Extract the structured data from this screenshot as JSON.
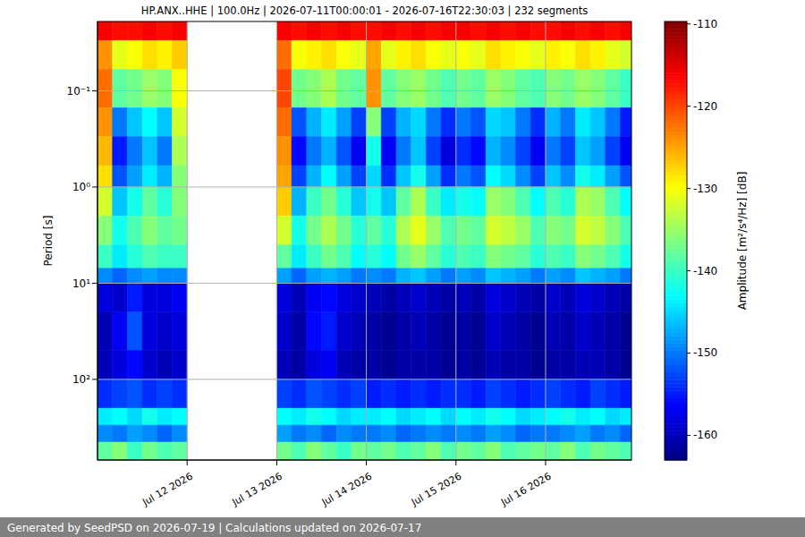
{
  "chart_data": {
    "type": "heatmap",
    "title": "HP.ANX..HHE | 100.0Hz | 2026-07-11T00:00:01 - 2026-07-16T22:30:03 | 232 segments",
    "ylabel": "Period [s]",
    "colorbar_label": "Amplitude [m²/s⁴/Hz] [dB]",
    "footer": "Generated by SeedPSD on 2026-07-19 | Calculations updated on 2026-07-17",
    "log": "y",
    "grid": true,
    "xlim": [
      "2026-07-11T00:00",
      "2026-07-16T23:00"
    ],
    "xticks": [
      {
        "value": "2026-07-12T00:00",
        "label": "Jul 12 2026"
      },
      {
        "value": "2026-07-13T00:00",
        "label": "Jul 13 2026"
      },
      {
        "value": "2026-07-14T00:00",
        "label": "Jul 14 2026"
      },
      {
        "value": "2026-07-15T00:00",
        "label": "Jul 15 2026"
      },
      {
        "value": "2026-07-16T00:00",
        "label": "Jul 16 2026"
      }
    ],
    "ylim": [
      0.019,
      690
    ],
    "yticks": [
      {
        "value": 0.1,
        "label": "10⁻¹"
      },
      {
        "value": 1,
        "label": "10⁰"
      },
      {
        "value": 10,
        "label": "10¹"
      },
      {
        "value": 100,
        "label": "10²"
      }
    ],
    "colorbar_range": [
      -163,
      -109.7
    ],
    "colorbar_ticks": [
      -160,
      -150,
      -140,
      -130,
      -120,
      -110
    ],
    "x_bins": [
      "2026-07-11T00:00",
      "2026-07-11T04:00",
      "2026-07-11T08:00",
      "2026-07-11T12:00",
      "2026-07-11T16:00",
      "2026-07-11T20:00",
      "2026-07-12T00:00",
      "2026-07-12T04:00",
      "2026-07-12T08:00",
      "2026-07-12T12:00",
      "2026-07-12T16:00",
      "2026-07-12T20:00",
      "2026-07-13T00:00",
      "2026-07-13T04:00",
      "2026-07-13T08:00",
      "2026-07-13T12:00",
      "2026-07-13T16:00",
      "2026-07-13T20:00",
      "2026-07-14T00:00",
      "2026-07-14T04:00",
      "2026-07-14T08:00",
      "2026-07-14T12:00",
      "2026-07-14T16:00",
      "2026-07-14T20:00",
      "2026-07-15T00:00",
      "2026-07-15T04:00",
      "2026-07-15T08:00",
      "2026-07-15T12:00",
      "2026-07-15T16:00",
      "2026-07-15T20:00",
      "2026-07-16T00:00",
      "2026-07-16T04:00",
      "2026-07-16T08:00",
      "2026-07-16T12:00",
      "2026-07-16T16:00",
      "2026-07-16T20:00",
      "2026-07-17T00:00"
    ],
    "y_bins": [
      0.019,
      0.03,
      0.06,
      0.15,
      0.3,
      0.6,
      1,
      2,
      4,
      7,
      10,
      20,
      50,
      100,
      200,
      300,
      450,
      690
    ],
    "cells": [
      [
        -116,
        -117,
        -117,
        -116,
        -117,
        -116,
        null,
        null,
        null,
        null,
        null,
        null,
        -116,
        -117,
        -116,
        -117,
        -116,
        -117,
        -117,
        -116,
        -117,
        -116,
        -117,
        -116,
        -116,
        -117,
        -116,
        -117,
        -116,
        -117,
        -117,
        -116,
        -117,
        -116,
        -117,
        -116
      ],
      [
        -124,
        -131,
        -130,
        -128,
        -129,
        -127,
        null,
        null,
        null,
        null,
        null,
        null,
        -122,
        -130,
        -129,
        -128,
        -130,
        -131,
        -125,
        -131,
        -129,
        -128,
        -130,
        -131,
        -130,
        -131,
        -128,
        -129,
        -130,
        -131,
        -129,
        -130,
        -128,
        -129,
        -131,
        -132
      ],
      [
        -122,
        -138,
        -137,
        -135,
        -136,
        -130,
        null,
        null,
        null,
        null,
        null,
        null,
        -120,
        -137,
        -136,
        -134,
        -137,
        -138,
        -124,
        -138,
        -136,
        -135,
        -137,
        -139,
        -137,
        -138,
        -135,
        -136,
        -138,
        -139,
        -136,
        -137,
        -135,
        -136,
        -138,
        -140
      ],
      [
        -124,
        -150,
        -146,
        -143,
        -146,
        -132,
        null,
        null,
        null,
        null,
        null,
        null,
        -122,
        -152,
        -147,
        -144,
        -148,
        -153,
        -136,
        -153,
        -147,
        -145,
        -150,
        -154,
        -150,
        -152,
        -145,
        -146,
        -150,
        -154,
        -147,
        -150,
        -144,
        -146,
        -150,
        -155
      ],
      [
        -126,
        -155,
        -150,
        -146,
        -150,
        -134,
        null,
        null,
        null,
        null,
        null,
        null,
        -124,
        -156,
        -150,
        -147,
        -152,
        -157,
        -142,
        -157,
        -150,
        -146,
        -153,
        -158,
        -154,
        -156,
        -147,
        -149,
        -153,
        -157,
        -150,
        -153,
        -146,
        -148,
        -153,
        -157
      ],
      [
        -128,
        -152,
        -148,
        -144,
        -147,
        -136,
        null,
        null,
        null,
        null,
        null,
        null,
        -125,
        -153,
        -147,
        -143,
        -148,
        -153,
        -145,
        -154,
        -146,
        -142,
        -148,
        -154,
        -150,
        -152,
        -143,
        -145,
        -149,
        -153,
        -146,
        -149,
        -142,
        -144,
        -148,
        -152
      ],
      [
        -132,
        -146,
        -142,
        -138,
        -141,
        -136,
        null,
        null,
        null,
        null,
        null,
        null,
        -127,
        -147,
        -140,
        -137,
        -141,
        -146,
        -142,
        -146,
        -138,
        -134,
        -140,
        -144,
        -142,
        -143,
        -135,
        -136,
        -139,
        -143,
        -139,
        -141,
        -134,
        -135,
        -139,
        -143
      ],
      [
        -136,
        -142,
        -139,
        -136,
        -138,
        -137,
        null,
        null,
        null,
        null,
        null,
        null,
        -132,
        -142,
        -137,
        -134,
        -137,
        -141,
        -138,
        -141,
        -134,
        -131,
        -135,
        -139,
        -137,
        -138,
        -132,
        -133,
        -135,
        -139,
        -136,
        -137,
        -132,
        -133,
        -136,
        -139
      ],
      [
        -140,
        -144,
        -141,
        -139,
        -140,
        -140,
        null,
        null,
        null,
        null,
        null,
        null,
        -138,
        -144,
        -140,
        -137,
        -139,
        -143,
        -141,
        -143,
        -137,
        -135,
        -138,
        -141,
        -139,
        -140,
        -136,
        -137,
        -138,
        -141,
        -139,
        -140,
        -136,
        -137,
        -139,
        -142
      ],
      [
        -149,
        -151,
        -149,
        -148,
        -149,
        -149,
        null,
        null,
        null,
        null,
        null,
        null,
        -148,
        -151,
        -148,
        -147,
        -148,
        -150,
        -149,
        -150,
        -147,
        -146,
        -148,
        -150,
        -148,
        -149,
        -146,
        -147,
        -148,
        -150,
        -148,
        -149,
        -146,
        -147,
        -148,
        -150
      ],
      [
        -158,
        -159,
        -155,
        -158,
        -158,
        -157,
        null,
        null,
        null,
        null,
        null,
        null,
        -158,
        -160,
        -157,
        -156,
        -158,
        -159,
        -160,
        -161,
        -160,
        -159,
        -160,
        -161,
        -160,
        -161,
        -158,
        -159,
        -160,
        -161,
        -159,
        -160,
        -158,
        -159,
        -160,
        -161
      ],
      [
        -160,
        -157,
        -152,
        -158,
        -159,
        -158,
        null,
        null,
        null,
        null,
        null,
        null,
        -159,
        -161,
        -156,
        -155,
        -159,
        -160,
        -161,
        -162,
        -161,
        -160,
        -161,
        -162,
        -161,
        -162,
        -159,
        -160,
        -161,
        -162,
        -160,
        -161,
        -159,
        -160,
        -161,
        -162
      ],
      [
        -160,
        -158,
        -156,
        -159,
        -160,
        -159,
        null,
        null,
        null,
        null,
        null,
        null,
        -160,
        -161,
        -158,
        -157,
        -160,
        -161,
        -161,
        -162,
        -161,
        -161,
        -161,
        -162,
        -161,
        -162,
        -160,
        -161,
        -161,
        -162,
        -161,
        -161,
        -160,
        -160,
        -161,
        -162
      ],
      [
        -154,
        -153,
        -152,
        -154,
        -153,
        -154,
        null,
        null,
        null,
        null,
        null,
        null,
        -153,
        -154,
        -152,
        -153,
        -154,
        -153,
        -155,
        -154,
        -155,
        -154,
        -155,
        -154,
        -154,
        -155,
        -153,
        -154,
        -155,
        -154,
        -153,
        -154,
        -155,
        -153,
        -154,
        -155
      ],
      [
        -144,
        -143,
        -145,
        -142,
        -144,
        -143,
        null,
        null,
        null,
        null,
        null,
        null,
        -143,
        -144,
        -142,
        -143,
        -145,
        -144,
        -144,
        -143,
        -145,
        -144,
        -143,
        -145,
        -143,
        -144,
        -142,
        -143,
        -145,
        -144,
        -143,
        -142,
        -144,
        -143,
        -145,
        -144
      ],
      [
        -149,
        -150,
        -148,
        -149,
        -151,
        -149,
        null,
        null,
        null,
        null,
        null,
        null,
        -148,
        -150,
        -149,
        -151,
        -149,
        -150,
        -150,
        -149,
        -151,
        -150,
        -149,
        -150,
        -149,
        -150,
        -148,
        -149,
        -151,
        -150,
        -150,
        -149,
        -148,
        -150,
        -149,
        -151
      ],
      [
        -138,
        -136,
        -140,
        -137,
        -139,
        -138,
        null,
        null,
        null,
        null,
        null,
        null,
        -137,
        -139,
        -136,
        -138,
        -140,
        -137,
        -138,
        -137,
        -139,
        -138,
        -136,
        -139,
        -137,
        -138,
        -136,
        -139,
        -138,
        -137,
        -138,
        -136,
        -139,
        -137,
        -138,
        -139
      ]
    ]
  }
}
